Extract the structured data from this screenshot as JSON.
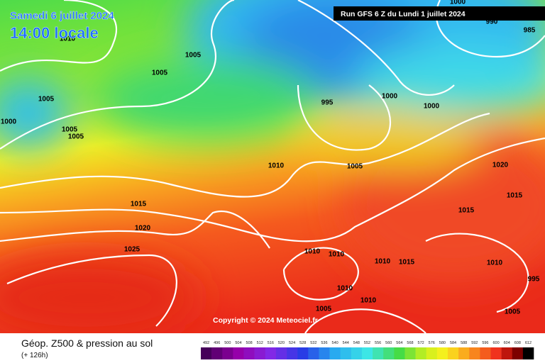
{
  "header": {
    "date": "Samedi 6 juillet 2024",
    "time": "14:00 locale",
    "run": "Run GFS 6 Z du Lundi 1 juillet 2024"
  },
  "copyright": "Copyright © 2024 Meteociel.fr",
  "footer": {
    "title": "Géop. Z500 & pression au sol",
    "lead": "(+ 126h)"
  },
  "scale": {
    "labels": [
      492,
      496,
      500,
      504,
      508,
      512,
      516,
      520,
      524,
      528,
      532,
      536,
      540,
      544,
      548,
      552,
      556,
      560,
      564,
      568,
      572,
      576,
      580,
      584,
      588,
      592,
      596,
      600,
      604,
      608,
      612
    ]
  },
  "isobars": {
    "labels": [
      "1000",
      "990",
      "985",
      "1010",
      "1005",
      "1005",
      "1005",
      "1000",
      "1005",
      "1005",
      "995",
      "1000",
      "1000",
      "1010",
      "1005",
      "1020",
      "1015",
      "1015",
      "1015",
      "1020",
      "1025",
      "1010",
      "1010",
      "1010",
      "1015",
      "1010",
      "995",
      "1010",
      "1010",
      "1005",
      "1005"
    ]
  }
}
